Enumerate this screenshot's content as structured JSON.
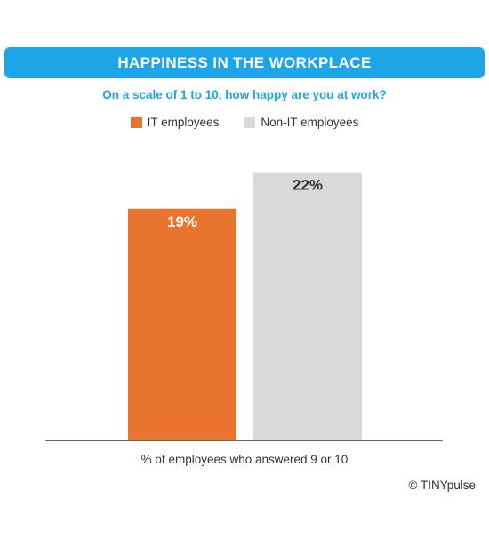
{
  "title": "HAPPINESS IN THE WORKPLACE",
  "subtitle": "On a scale of 1 to 10, how happy are you at work?",
  "colors": {
    "title_bg": "#1ea5e8",
    "subtitle": "#1ea5e8",
    "it": "#e8742e",
    "non_it": "#d9d9d9"
  },
  "legend": [
    {
      "label": "IT employees",
      "color": "#e8742e"
    },
    {
      "label": "Non-IT employees",
      "color": "#d9d9d9"
    }
  ],
  "source": "© TINYpulse",
  "chart_data": {
    "type": "bar",
    "categories": [
      "IT employees",
      "Non-IT employees"
    ],
    "values": [
      19,
      22
    ],
    "value_labels": [
      "19%",
      "22%"
    ],
    "xlabel": "% of employees who answered 9 or 10",
    "ylabel": "",
    "ylim": [
      0,
      23
    ],
    "grid": false,
    "legend_position": "top-center"
  }
}
